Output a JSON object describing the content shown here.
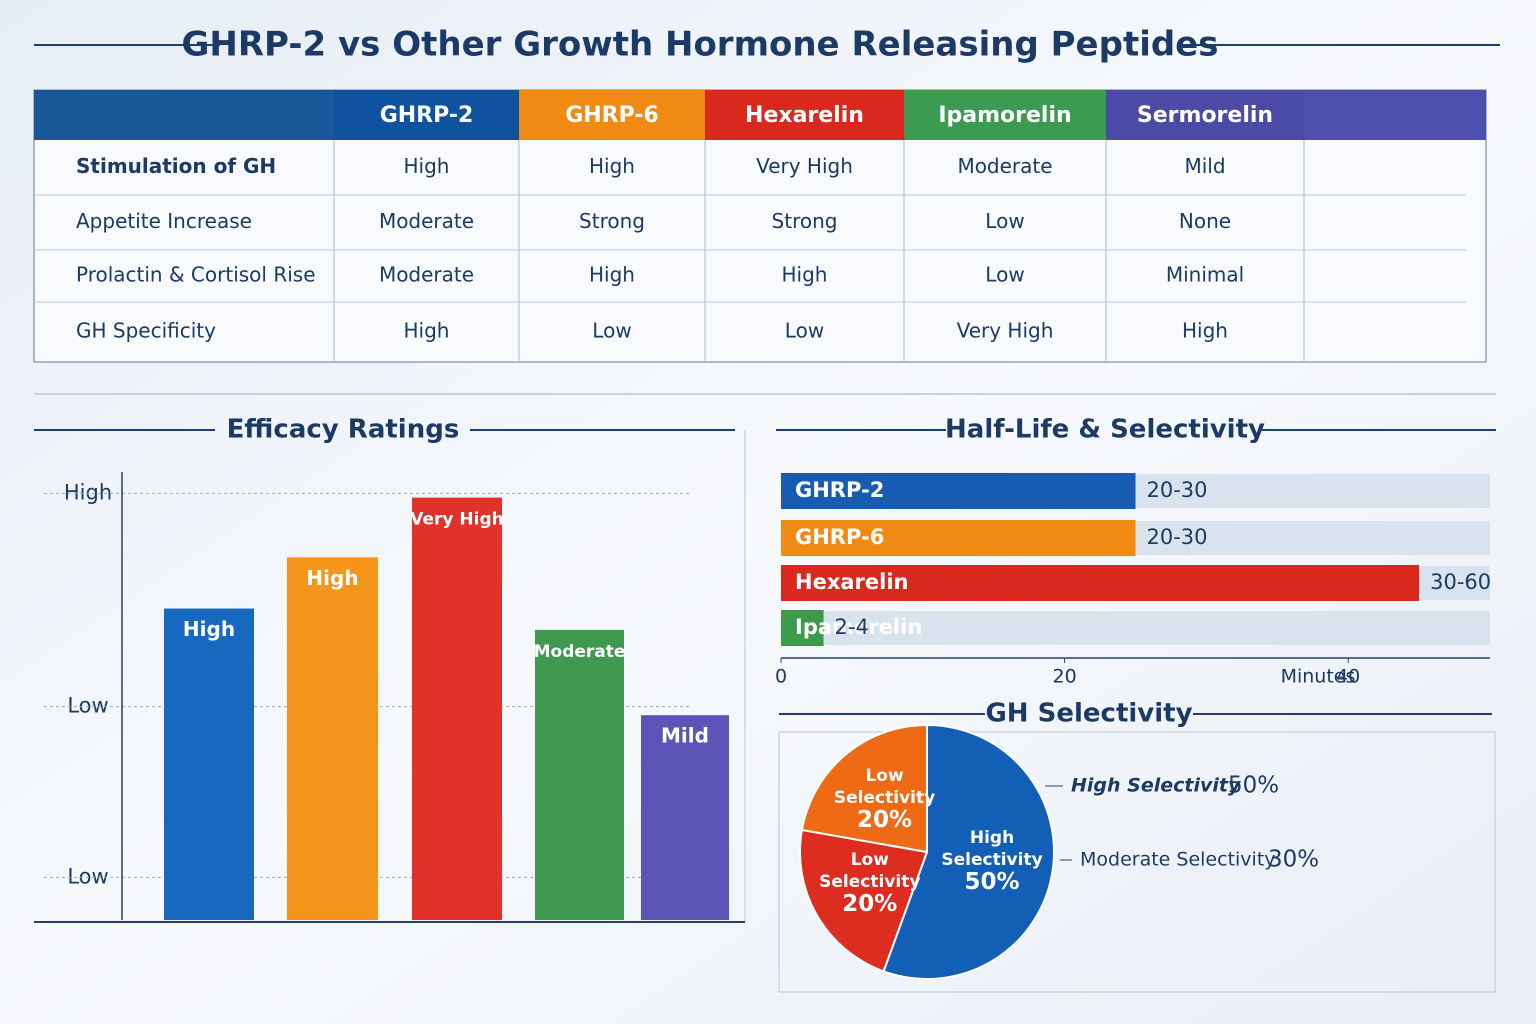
{
  "title": "GHRP-2 vs Other Growth Hormone Releasing Peptides",
  "table": {
    "columns": [
      "GHRP-2",
      "GHRP-6",
      "Hexarelin",
      "Ipamorelin",
      "Sermorelin"
    ],
    "column_colors": [
      "#0f52a0",
      "#f08a12",
      "#d9291f",
      "#3d9a52",
      "#4b4aa6"
    ],
    "rows": [
      [
        "Stimulation of GH",
        "High",
        "High",
        "Very High",
        "Moderate",
        "Mild"
      ],
      [
        "Appetite Increase",
        "Moderate",
        "Strong",
        "Strong",
        "Low",
        "None"
      ],
      [
        "Prolactin & Cortisol Rise",
        "Moderate",
        "High",
        "High",
        "Low",
        "Minimal"
      ],
      [
        "GH Specificity",
        "High",
        "Low",
        "Low",
        "Very High",
        "High"
      ]
    ]
  },
  "chart_data": [
    {
      "type": "bar",
      "title": "Efficacy Ratings",
      "values": [
        7.3,
        8.5,
        9.9,
        6.8,
        4.8
      ],
      "value_labels": [
        "High",
        "High",
        "Very High",
        "Moderate",
        "Mild"
      ],
      "colors": [
        "#1769c0",
        "#f5951c",
        "#e0322a",
        "#3f9a4f",
        "#5d54b8"
      ],
      "ylim": [
        0,
        10.5
      ],
      "yticks": [
        {
          "value": 10,
          "label": "High"
        },
        {
          "value": 5,
          "label": "Low"
        },
        {
          "value": 1,
          "label": "Low"
        }
      ],
      "grid": true
    },
    {
      "type": "barh",
      "title": "Half-Life & Selectivity",
      "categories": [
        "GHRP-2",
        "GHRP-6",
        "Hexarelin",
        "Ipamorelin"
      ],
      "values": [
        25,
        25,
        45,
        3
      ],
      "value_labels": [
        "20-30",
        "20-30",
        "30-60",
        "2-4"
      ],
      "colors": [
        "#175cb0",
        "#f08a12",
        "#d9291f",
        "#3d9a4a"
      ],
      "xlim": [
        0,
        50
      ],
      "xticks": [
        0,
        20,
        40
      ],
      "x_label": "Minutes"
    },
    {
      "type": "pie",
      "title": "GH Selectivity",
      "labels": [
        "High Selectivity",
        "Low Selectivity",
        "Low Selectivity"
      ],
      "values": [
        50,
        20,
        20
      ],
      "value_labels": [
        "50%",
        "20%",
        "20%"
      ],
      "colors": [
        "#125fb5",
        "#dd2c20",
        "#ef6a14"
      ],
      "annotations": [
        {
          "text": "High Selectivity",
          "value_label": "50%"
        },
        {
          "text": "Moderate Selectivity",
          "value_label": "30%"
        }
      ]
    }
  ]
}
